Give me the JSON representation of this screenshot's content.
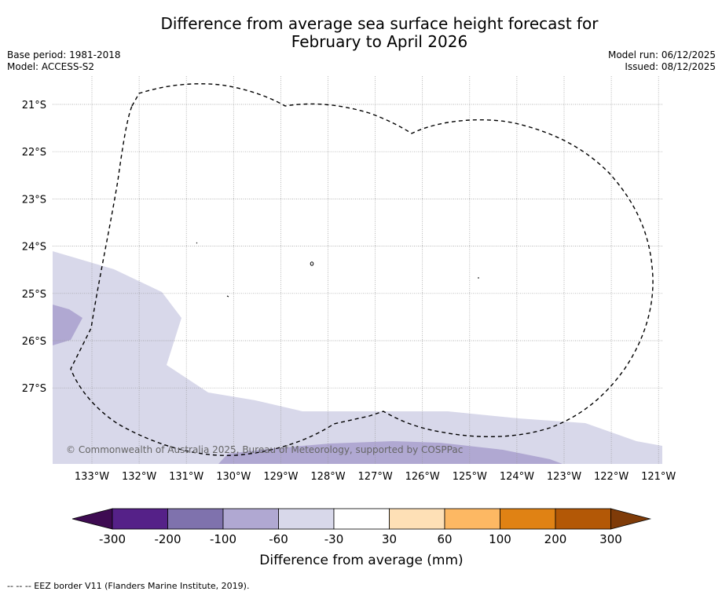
{
  "title": {
    "line1": "Difference from average sea surface height forecast for",
    "line2": "February to April 2026"
  },
  "meta_left": {
    "base_period": "Base period: 1981-2018",
    "model": "Model: ACCESS-S2"
  },
  "meta_right": {
    "model_run": "Model run: 06/12/2025",
    "issued": "Issued: 08/12/2025"
  },
  "map": {
    "lat_labels": [
      "21°S",
      "22°S",
      "23°S",
      "24°S",
      "25°S",
      "26°S",
      "27°S"
    ],
    "lon_labels": [
      "133°W",
      "132°W",
      "131°W",
      "130°W",
      "129°W",
      "128°W",
      "127°W",
      "126°W",
      "125°W",
      "124°W",
      "123°W",
      "122°W",
      "121°W"
    ],
    "copyright": "© Commonwealth of Australia 2025, Bureau of Meteorology, supported by COSPPac",
    "fill_colors": {
      "light_lavender": "#d8d8ea",
      "mid_lavender": "#b0a8d2"
    }
  },
  "colorbar": {
    "labels": [
      "-300",
      "-200",
      "-100",
      "-60",
      "-30",
      "30",
      "60",
      "100",
      "200",
      "300"
    ],
    "colors": [
      "#3e0b52",
      "#552188",
      "#7f72ad",
      "#b0a8d2",
      "#d8d8ea",
      "#ffffff",
      "#fee0b6",
      "#fdb863",
      "#e08214",
      "#b35806",
      "#7f3b08"
    ],
    "title": "Difference from average (mm)"
  },
  "footnote": "--  --  -- EEZ border V11 (Flanders Marine Institute, 2019)."
}
